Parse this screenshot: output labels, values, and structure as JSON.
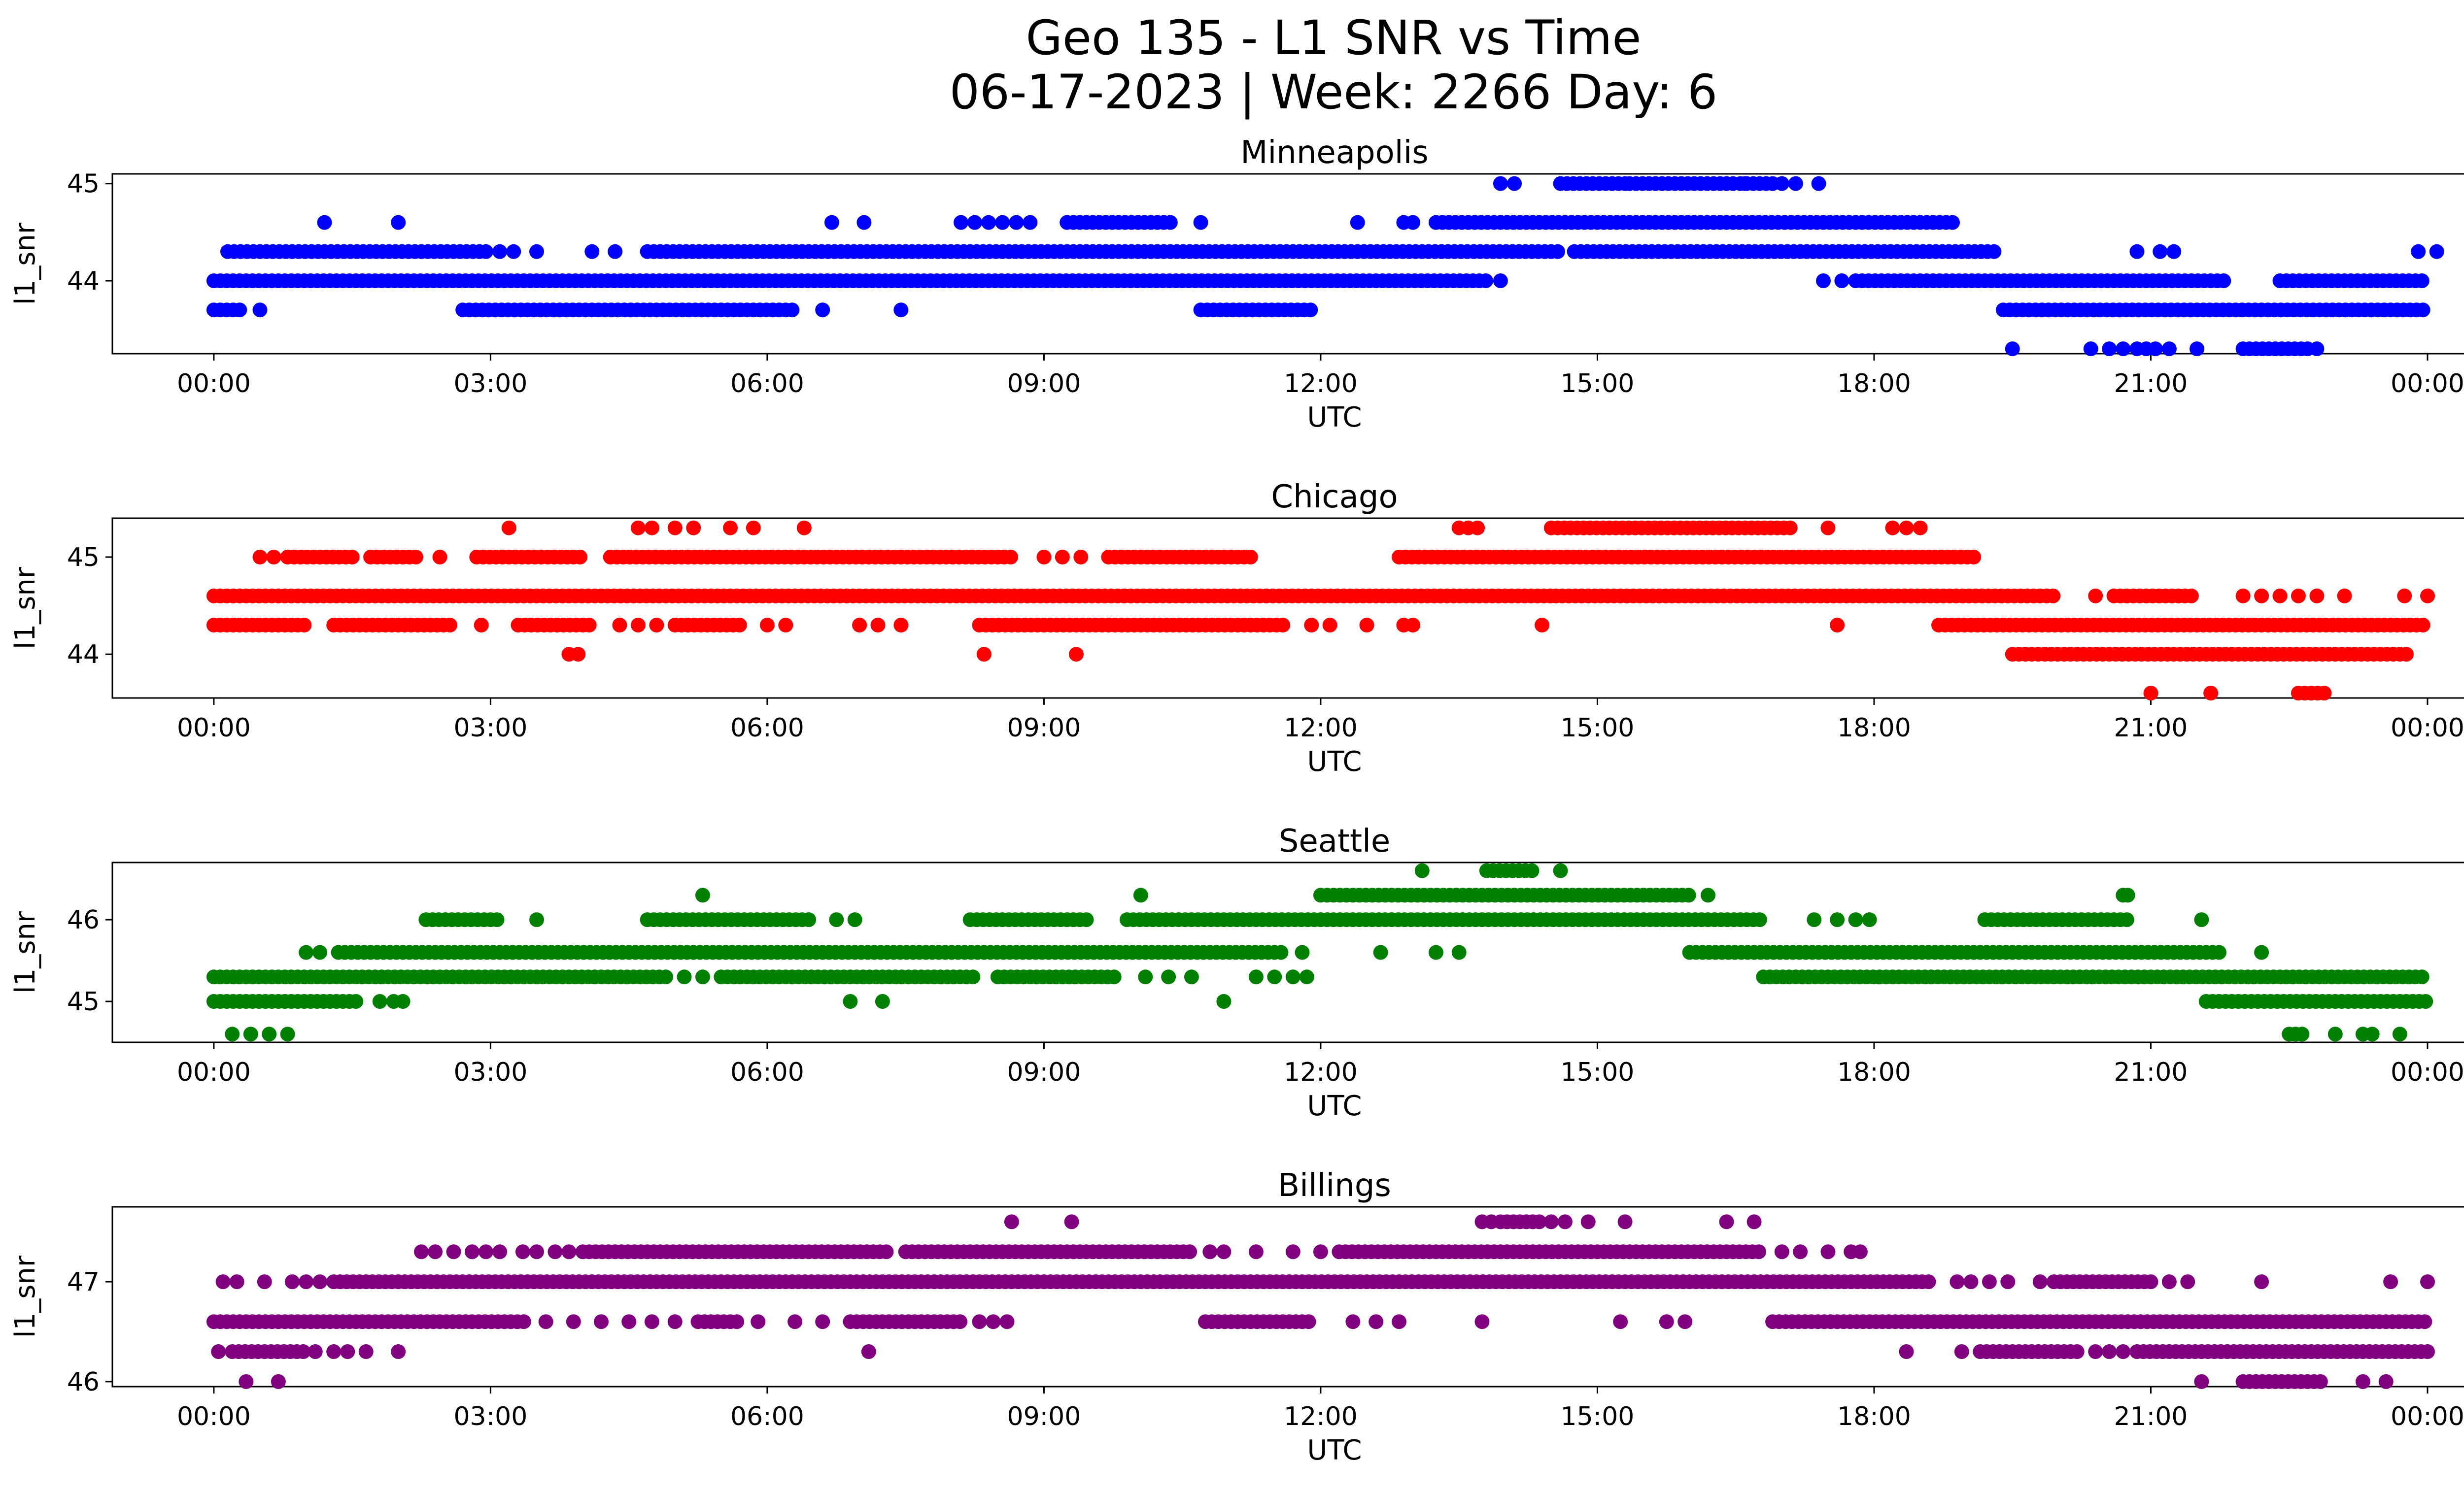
{
  "title_line1": "Geo 135 - L1 SNR vs Time",
  "title_line2": "06-17-2023 | Week: 2266 Day: 6",
  "chart_data": [
    {
      "type": "scatter",
      "title": "Minneapolis",
      "xlabel": "UTC",
      "ylabel": "l1_snr",
      "color": "#0000ff",
      "x_range_hours": [
        -1.1,
        25.4
      ],
      "ylim": [
        43.25,
        45.1
      ],
      "yticks": [
        44,
        45
      ],
      "xticks": [
        "00:00",
        "03:00",
        "06:00",
        "09:00",
        "12:00",
        "15:00",
        "18:00",
        "21:00",
        "00:00"
      ],
      "levels": [
        {
          "y": 45.0,
          "segments": [
            [
              14.6,
              15.3
            ],
            [
              15.35,
              16.5
            ],
            [
              16.55,
              16.9
            ]
          ],
          "points": [
            13.95,
            14.1,
            16.6,
            17.0,
            17.15,
            17.4
          ]
        },
        {
          "y": 44.6,
          "segments": [
            [
              9.25,
              10.4
            ],
            [
              13.25,
              18.9
            ]
          ],
          "points": [
            1.2,
            2.0,
            6.7,
            7.05,
            8.1,
            8.25,
            8.4,
            8.55,
            8.7,
            8.85,
            10.7,
            12.4,
            12.9,
            13.0
          ]
        },
        {
          "y": 44.3,
          "segments": [
            [
              0.15,
              3.0
            ],
            [
              4.7,
              14.6
            ],
            [
              14.75,
              19.35
            ]
          ],
          "points": [
            3.1,
            3.25,
            3.5,
            4.1,
            4.35,
            20.85,
            21.1,
            21.25,
            23.9,
            24.1
          ]
        },
        {
          "y": 44.0,
          "segments": [
            [
              0.0,
              13.8
            ],
            [
              17.8,
              21.8
            ],
            [
              22.4,
              24.0
            ]
          ],
          "points": [
            13.95,
            17.45,
            17.65
          ]
        },
        {
          "y": 43.7,
          "segments": [
            [
              0.0,
              0.3
            ],
            [
              2.7,
              6.3
            ],
            [
              10.7,
              11.9
            ],
            [
              19.4,
              24.0
            ]
          ],
          "points": [
            0.5,
            6.6,
            7.45
          ]
        },
        {
          "y": 43.3,
          "segments": [
            [
              22.0,
              22.7
            ]
          ],
          "points": [
            19.5,
            20.35,
            20.55,
            20.7,
            20.85,
            20.95,
            21.05,
            21.2,
            21.5,
            22.8
          ]
        }
      ]
    },
    {
      "type": "scatter",
      "title": "Chicago",
      "xlabel": "UTC",
      "ylabel": "l1_snr",
      "color": "#ff0000",
      "x_range_hours": [
        -1.1,
        25.4
      ],
      "ylim": [
        43.55,
        45.4
      ],
      "yticks": [
        44,
        45
      ],
      "xticks": [
        "00:00",
        "03:00",
        "06:00",
        "09:00",
        "12:00",
        "15:00",
        "18:00",
        "21:00",
        "00:00"
      ],
      "levels": [
        {
          "y": 45.3,
          "segments": [
            [
              14.5,
              17.1
            ]
          ],
          "points": [
            3.2,
            4.6,
            4.75,
            5.0,
            5.2,
            5.6,
            5.85,
            6.4,
            13.5,
            13.6,
            13.7,
            17.5,
            18.2,
            18.35,
            18.5
          ]
        },
        {
          "y": 45.0,
          "segments": [
            [
              0.8,
              1.5
            ],
            [
              1.7,
              2.2
            ],
            [
              2.85,
              4.0
            ],
            [
              4.3,
              8.7
            ],
            [
              9.7,
              11.3
            ],
            [
              12.85,
              19.1
            ]
          ],
          "points": [
            0.5,
            0.65,
            2.45,
            9.0,
            9.2,
            9.4
          ]
        },
        {
          "y": 44.6,
          "segments": [
            [
              0.0,
              14.5
            ],
            [
              14.55,
              20.0
            ],
            [
              20.6,
              21.5
            ]
          ],
          "points": [
            20.4,
            22.0,
            22.2,
            22.4,
            22.6,
            22.8,
            23.1,
            23.75,
            24.0
          ]
        },
        {
          "y": 44.3,
          "segments": [
            [
              0.0,
              1.0
            ],
            [
              1.3,
              2.6
            ],
            [
              3.3,
              4.1
            ],
            [
              5.0,
              5.7
            ],
            [
              8.3,
              11.6
            ],
            [
              18.7,
              24.0
            ]
          ],
          "points": [
            2.9,
            4.4,
            4.6,
            4.8,
            6.0,
            6.2,
            7.0,
            7.2,
            7.45,
            11.9,
            12.1,
            12.5,
            12.9,
            13.0,
            14.4,
            17.6
          ]
        },
        {
          "y": 44.0,
          "segments": [
            [
              19.5,
              23.8
            ]
          ],
          "points": [
            3.85,
            3.95,
            8.35,
            9.35
          ]
        },
        {
          "y": 43.6,
          "segments": [
            [
              22.6,
              22.9
            ]
          ],
          "points": [
            21.0,
            21.65
          ]
        }
      ]
    },
    {
      "type": "scatter",
      "title": "Seattle",
      "xlabel": "UTC",
      "ylabel": "l1_snr",
      "color": "#008000",
      "x_range_hours": [
        -1.1,
        25.4
      ],
      "ylim": [
        44.5,
        46.7
      ],
      "yticks": [
        45,
        46
      ],
      "xticks": [
        "00:00",
        "03:00",
        "06:00",
        "09:00",
        "12:00",
        "15:00",
        "18:00",
        "21:00",
        "00:00"
      ],
      "levels": [
        {
          "y": 46.6,
          "segments": [
            [
              13.8,
              14.3
            ]
          ],
          "points": [
            13.1,
            14.6
          ]
        },
        {
          "y": 46.3,
          "segments": [
            [
              12.0,
              16.0
            ]
          ],
          "points": [
            5.3,
            10.05,
            16.2,
            20.7,
            20.75
          ]
        },
        {
          "y": 46.0,
          "segments": [
            [
              2.3,
              3.1
            ],
            [
              4.7,
              6.5
            ],
            [
              8.2,
              9.5
            ],
            [
              9.9,
              16.8
            ],
            [
              19.2,
              20.8
            ]
          ],
          "points": [
            3.5,
            6.75,
            6.95,
            17.35,
            17.6,
            17.8,
            17.95,
            21.55
          ]
        },
        {
          "y": 45.6,
          "segments": [
            [
              1.35,
              11.6
            ],
            [
              16.0,
              21.8
            ]
          ],
          "points": [
            1.0,
            1.15,
            11.8,
            12.65,
            13.25,
            13.5,
            22.2
          ]
        },
        {
          "y": 45.3,
          "segments": [
            [
              0.0,
              4.9
            ],
            [
              5.5,
              8.25
            ],
            [
              8.5,
              9.8
            ],
            [
              16.8,
              24.0
            ]
          ],
          "points": [
            5.1,
            5.3,
            10.1,
            10.35,
            10.6,
            11.3,
            11.5,
            11.7,
            11.85
          ]
        },
        {
          "y": 45.0,
          "segments": [
            [
              0.0,
              1.6
            ],
            [
              21.6,
              24.0
            ]
          ],
          "points": [
            1.8,
            1.95,
            2.05,
            6.9,
            7.25,
            10.95
          ]
        },
        {
          "y": 44.6,
          "segments": [
            [
              22.5,
              22.65
            ]
          ],
          "points": [
            0.2,
            0.4,
            0.6,
            0.8,
            23.0,
            23.3,
            23.4,
            23.7
          ]
        }
      ]
    },
    {
      "type": "scatter",
      "title": "Billings",
      "xlabel": "UTC",
      "ylabel": "l1_snr",
      "color": "#800080",
      "x_range_hours": [
        -1.1,
        25.4
      ],
      "ylim": [
        45.95,
        47.75
      ],
      "yticks": [
        46,
        47
      ],
      "xticks": [
        "00:00",
        "03:00",
        "06:00",
        "09:00",
        "12:00",
        "15:00",
        "18:00",
        "21:00",
        "00:00"
      ],
      "levels": [
        {
          "y": 47.6,
          "segments": [
            [
              13.95,
              14.4
            ]
          ],
          "points": [
            8.65,
            9.3,
            13.75,
            13.85,
            14.5,
            14.65,
            14.9,
            15.3,
            16.4,
            16.7
          ]
        },
        {
          "y": 47.3,
          "segments": [
            [
              4.0,
              7.3
            ],
            [
              7.5,
              10.6
            ],
            [
              12.2,
              16.8
            ]
          ],
          "points": [
            2.25,
            2.4,
            2.6,
            2.8,
            2.95,
            3.1,
            3.35,
            3.5,
            3.7,
            3.85,
            10.8,
            10.95,
            11.3,
            11.7,
            12.0,
            17.0,
            17.2,
            17.5,
            17.75,
            17.85
          ]
        },
        {
          "y": 47.0,
          "segments": [
            [
              1.3,
              18.6
            ],
            [
              19.95,
              21.0
            ]
          ],
          "points": [
            0.1,
            0.25,
            0.55,
            0.85,
            1.0,
            1.15,
            18.9,
            19.05,
            19.25,
            19.45,
            19.8,
            21.2,
            21.4,
            22.2,
            23.6,
            24.0
          ]
        },
        {
          "y": 46.6,
          "segments": [
            [
              0.0,
              3.4
            ],
            [
              5.25,
              5.7
            ],
            [
              6.9,
              8.1
            ],
            [
              10.75,
              11.9
            ],
            [
              16.9,
              24.0
            ]
          ],
          "points": [
            3.6,
            3.9,
            4.2,
            4.5,
            4.75,
            5.0,
            5.9,
            6.3,
            6.6,
            8.3,
            8.45,
            8.6,
            12.35,
            12.6,
            12.85,
            13.75,
            15.25,
            15.75,
            15.95
          ]
        },
        {
          "y": 46.3,
          "segments": [
            [
              0.2,
              1.0
            ],
            [
              19.15,
              20.2
            ],
            [
              20.85,
              24.0
            ]
          ],
          "points": [
            0.05,
            1.1,
            1.3,
            1.45,
            1.65,
            2.0,
            7.1,
            18.35,
            18.95,
            20.4,
            20.55,
            20.7
          ]
        },
        {
          "y": 46.0,
          "segments": [
            [
              22.0,
              22.9
            ]
          ],
          "points": [
            0.35,
            0.7,
            21.55,
            23.3,
            23.55
          ]
        }
      ]
    }
  ]
}
